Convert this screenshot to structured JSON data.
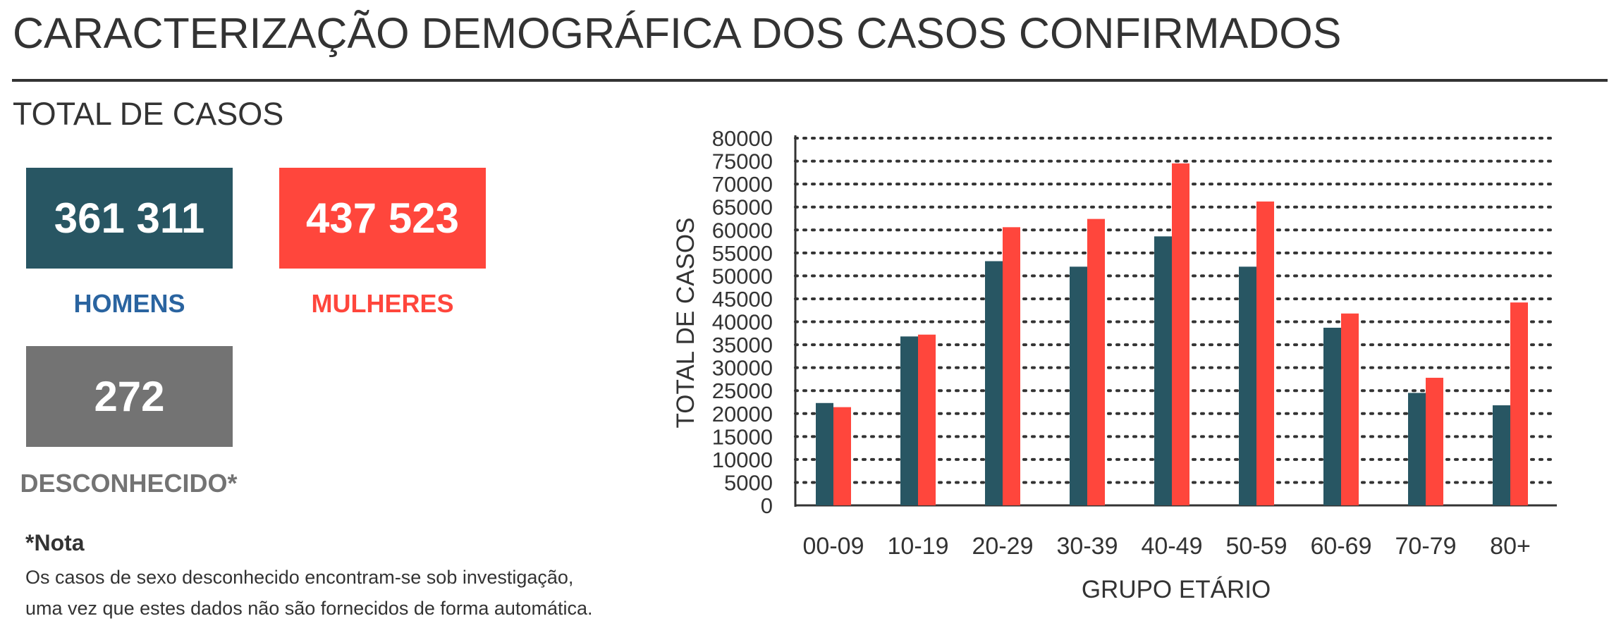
{
  "header": {
    "title": "CARACTERIZAÇÃO DEMOGRÁFICA DOS CASOS CONFIRMADOS",
    "subtitle": "TOTAL DE CASOS"
  },
  "stats": {
    "men": {
      "value": "361 311",
      "label": "HOMENS",
      "color": "#285663"
    },
    "women": {
      "value": "437 523",
      "label": "MULHERES",
      "color": "#ff463c"
    },
    "unknown": {
      "value": "272",
      "label": "DESCONHECIDO*",
      "color": "#737373"
    }
  },
  "labels": {
    "men_label_color": "#2a64a0",
    "women_label_color": "#ff463c",
    "unknown_label_color": "#737373"
  },
  "note": {
    "title": "*Nota",
    "lines": [
      "Os casos de sexo desconhecido encontram-se sob investigação,",
      "uma vez que estes dados não são fornecidos de forma automática."
    ]
  },
  "chart_data": {
    "type": "bar",
    "xlabel": "GRUPO ETÁRIO",
    "ylabel": "TOTAL DE CASOS",
    "categories": [
      "00-09",
      "10-19",
      "20-29",
      "30-39",
      "40-49",
      "50-59",
      "60-69",
      "70-79",
      "80+"
    ],
    "series": [
      {
        "values": [
          22300,
          36800,
          53200,
          52000,
          58600,
          52000,
          38700,
          24500,
          21800
        ],
        "color": "#285663"
      },
      {
        "values": [
          21400,
          37200,
          60600,
          62400,
          74500,
          66200,
          41800,
          27800,
          44200
        ],
        "color": "#ff463c"
      }
    ],
    "ylim": [
      0,
      80000
    ],
    "yticks": [
      0,
      5000,
      10000,
      15000,
      20000,
      25000,
      30000,
      35000,
      40000,
      45000,
      50000,
      55000,
      60000,
      65000,
      70000,
      75000,
      80000
    ],
    "grid": true
  }
}
